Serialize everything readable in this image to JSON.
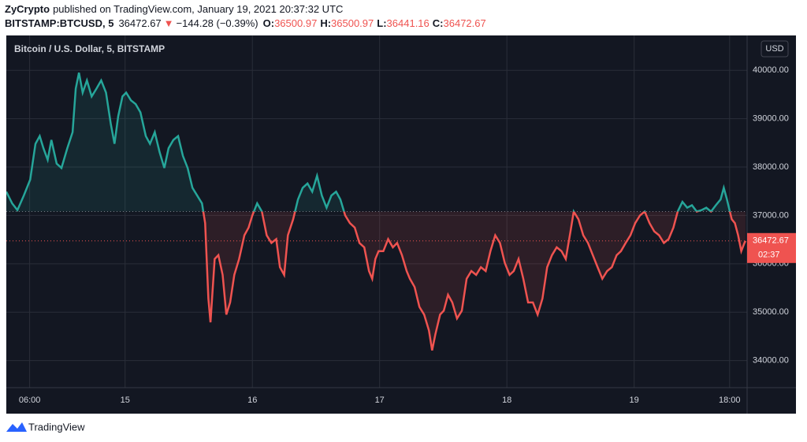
{
  "header": {
    "publisher": "ZyCrypto",
    "published": "published on TradingView.com, January 19, 2021 20:37:32 UTC",
    "symbol": "BITSTAMP:BTCUSD, 5",
    "price": "36472.67",
    "arrow": "▼",
    "change": "−144.28 (−0.39%)",
    "o_label": "O:",
    "o": "36500.97",
    "h_label": "H:",
    "h": "36500.97",
    "l_label": "L:",
    "l": "36441.16",
    "c_label": "C:",
    "c": "36472.67"
  },
  "chart_data": {
    "type": "baseline",
    "title": "Bitcoin / U.S. Dollar, 5, BITSTAMP",
    "currency": "USD",
    "up_color": "#26a69a",
    "down_color": "#ef5350",
    "baseline": 37080,
    "last_price": 36472.67,
    "countdown": "02:37",
    "grid": true,
    "x": [
      1.6,
      2.7,
      3.7,
      4.9,
      6.1,
      7.1,
      7.9,
      8.6,
      9.4,
      10.1,
      11.1,
      12.0,
      13.1,
      14.1,
      14.7,
      15.3,
      16.0,
      16.8,
      17.7,
      18.6,
      19.5,
      20.4,
      21.3,
      22.0,
      22.7,
      23.5,
      24.2,
      25.1,
      26.0,
      26.9,
      27.9,
      28.7,
      29.6,
      30.5,
      31.4,
      32.2,
      33.1,
      34.0,
      34.9,
      35.8,
      36.7,
      37.6,
      38.5,
      39.1,
      39.7,
      40.1,
      40.9,
      41.6,
      42.4,
      43.1,
      43.8,
      44.6,
      45.5,
      46.5,
      47.3,
      48.0,
      48.9,
      49.8,
      50.7,
      51.6,
      52.5,
      53.2,
      54.0,
      54.7,
      55.7,
      56.6,
      57.5,
      58.4,
      59.3,
      60.2,
      61.1,
      62.0,
      62.9,
      63.8,
      64.6,
      65.5,
      66.4,
      67.3,
      68.2,
      69.1,
      70.0,
      70.6,
      71.2,
      71.8,
      72.7,
      73.6,
      74.5,
      75.3,
      76.2,
      77.1,
      77.7,
      78.6,
      79.5,
      80.4,
      81.3,
      81.9,
      82.5,
      83.4,
      84.1,
      84.9,
      85.7,
      86.6,
      87.5,
      88.4,
      89.3,
      90.2,
      91.1,
      92.0,
      92.9,
      93.8,
      94.7,
      95.6,
      96.5,
      97.3,
      98.2,
      99.1,
      100.0,
      100.9,
      101.8,
      102.7,
      103.6,
      104.5,
      105.4,
      106.3,
      107.1,
      108.0,
      108.6,
      109.5,
      110.4,
      111.3,
      112.2,
      113.1,
      114.0,
      114.9,
      115.8,
      116.7,
      117.5,
      118.4,
      119.3,
      120.2,
      121.1,
      122.0,
      122.9,
      123.8,
      124.7,
      125.6,
      126.5,
      127.4,
      128.2,
      129.1,
      130.0,
      130.9,
      131.8,
      132.7,
      133.6,
      134.5,
      135.4,
      136.3,
      136.9,
      137.5,
      138.4,
      139.0,
      139.6,
      140.2,
      140.8,
      141.0
    ],
    "values": [
      37490,
      37250,
      37110,
      37410,
      37740,
      38480,
      38640,
      38390,
      38150,
      38560,
      38070,
      37980,
      38390,
      38720,
      39620,
      39950,
      39540,
      39790,
      39460,
      39620,
      39790,
      39540,
      38890,
      38480,
      39050,
      39460,
      39540,
      39380,
      39300,
      39130,
      38640,
      38480,
      38720,
      38310,
      37980,
      38390,
      38560,
      38640,
      38230,
      37980,
      37570,
      37410,
      37250,
      36840,
      35280,
      34790,
      36100,
      36180,
      35770,
      34950,
      35200,
      35770,
      36100,
      36590,
      36750,
      37000,
      37250,
      37080,
      36590,
      36430,
      36510,
      35930,
      35770,
      36590,
      36920,
      37330,
      37570,
      37660,
      37490,
      37820,
      37410,
      37160,
      37410,
      37490,
      37330,
      37000,
      36840,
      36750,
      36430,
      36340,
      35850,
      35690,
      36100,
      36260,
      36260,
      36510,
      36340,
      36430,
      36180,
      35850,
      35690,
      35520,
      35110,
      34950,
      34620,
      34210,
      34540,
      34950,
      35030,
      35360,
      35200,
      34870,
      35030,
      35690,
      35850,
      35770,
      35930,
      35850,
      36260,
      36590,
      36430,
      36020,
      35770,
      35850,
      36100,
      35690,
      35200,
      35200,
      34950,
      35280,
      35930,
      36180,
      36340,
      36260,
      36100,
      36670,
      37080,
      36920,
      36590,
      36430,
      36180,
      35930,
      35690,
      35850,
      35930,
      36180,
      36260,
      36430,
      36590,
      36840,
      37000,
      37080,
      36840,
      36670,
      36590,
      36430,
      36510,
      36750,
      37080,
      37280,
      37160,
      37210,
      37080,
      37110,
      37160,
      37080,
      37210,
      37330,
      37570,
      37330,
      36920,
      36840,
      36590,
      36260,
      36430,
      36472.67
    ],
    "xlim": [
      1.6,
      141.3
    ],
    "ylim": [
      33440,
      40720
    ],
    "xticks": [
      {
        "value": 6,
        "label": "06:00"
      },
      {
        "value": 24,
        "label": "15"
      },
      {
        "value": 48,
        "label": "16"
      },
      {
        "value": 72,
        "label": "17"
      },
      {
        "value": 96,
        "label": "18"
      },
      {
        "value": 120,
        "label": "19"
      },
      {
        "value": 138,
        "label": "18:00"
      }
    ],
    "yticks": [
      {
        "value": 34000,
        "label": "34000.00"
      },
      {
        "value": 35000,
        "label": "35000.00"
      },
      {
        "value": 36000,
        "label": "36000.00"
      },
      {
        "value": 37000,
        "label": "37000.00"
      },
      {
        "value": 38000,
        "label": "38000.00"
      },
      {
        "value": 39000,
        "label": "39000.00"
      },
      {
        "value": 40000,
        "label": "40000.00"
      }
    ]
  },
  "footer": {
    "brand": "TradingView"
  }
}
